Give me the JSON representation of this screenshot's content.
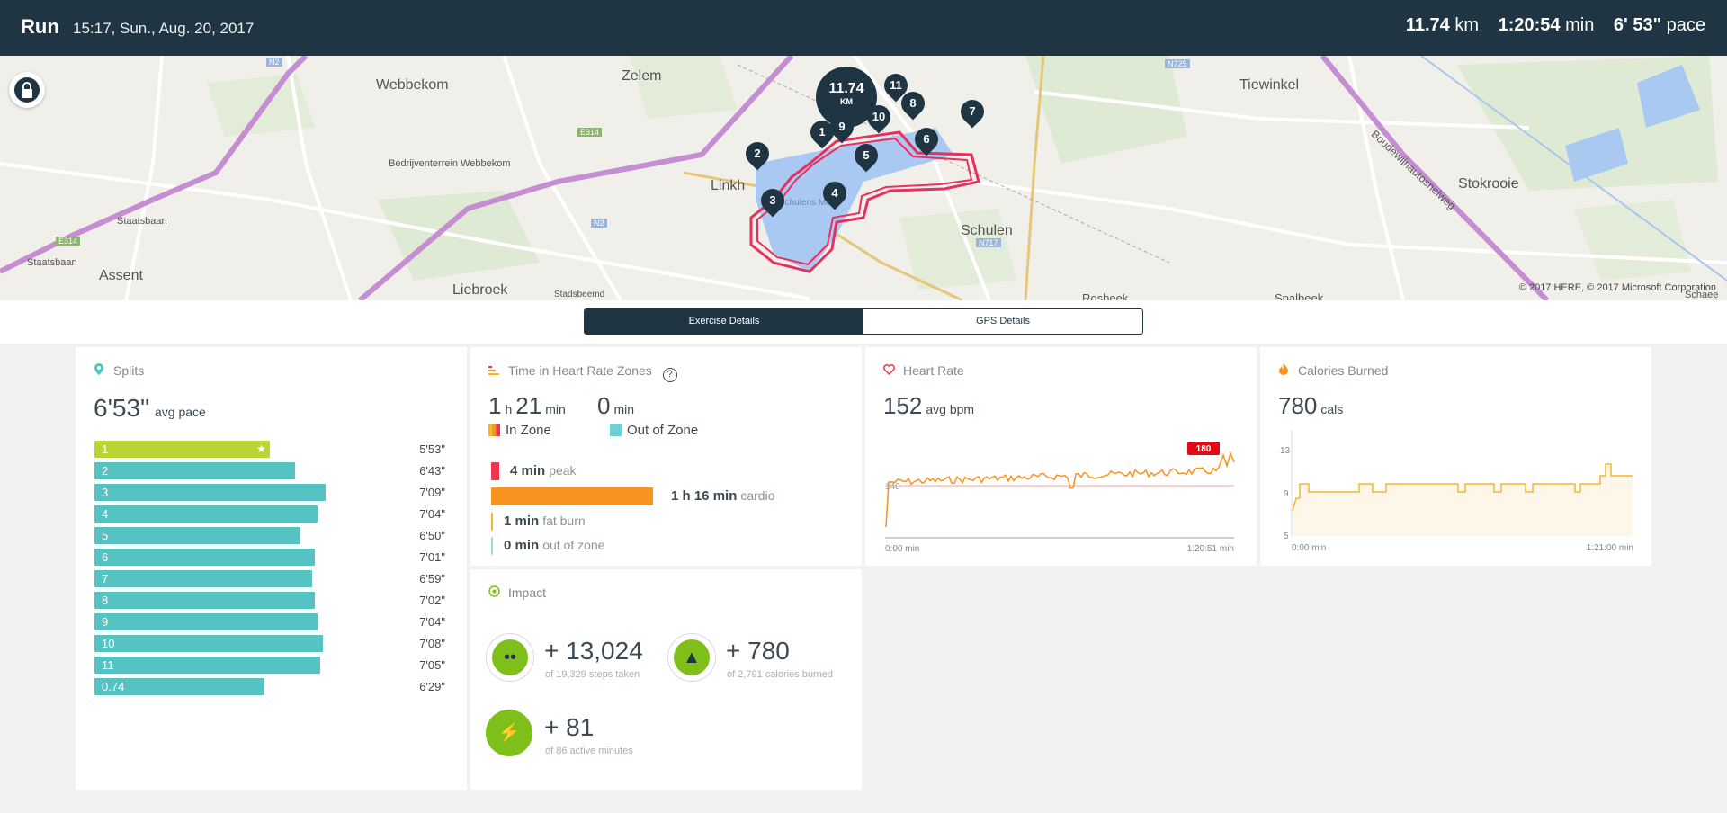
{
  "header": {
    "title": "Run",
    "datetime": "15:17, Sun., Aug. 20, 2017",
    "distance": "11.74",
    "distance_unit": "km",
    "duration": "1:20:54",
    "duration_unit": "min",
    "pace": "6' 53\"",
    "pace_unit": "pace"
  },
  "map": {
    "places": [
      "Webbekom",
      "Zelem",
      "Tiewinkel",
      "Bedrijventerrein Webbekom",
      "Linkh",
      "Stokrooie",
      "Schulen",
      "Assent",
      "Liebroek",
      "Staatsbaan",
      "Staatsbaan",
      "Boudewijnautosnelweg",
      "Schulens Meer",
      "Stadsbeemd",
      "Rosbeek",
      "Spalbeek",
      "Schaee"
    ],
    "road_badges": [
      "N2",
      "E314",
      "N725",
      "N2",
      "E314",
      "N717"
    ],
    "credit": "© 2017 HERE, © 2017 Microsoft Corporation",
    "total_marker_value": "11.74",
    "total_marker_unit": "KM",
    "markers": [
      "1",
      "2",
      "3",
      "4",
      "5",
      "6",
      "7",
      "8",
      "9",
      "10",
      "11"
    ],
    "lock_icon": "lock-icon"
  },
  "tabs": {
    "exercise": "Exercise Details",
    "gps": "GPS Details",
    "active": "exercise"
  },
  "splits": {
    "title": "Splits",
    "icon": "location-pin-icon",
    "avg_pace": "6'53\"",
    "avg_pace_label": "avg pace",
    "rows": [
      {
        "label": "1",
        "time": "5'53\"",
        "fraction": 0.63,
        "best": true
      },
      {
        "label": "2",
        "time": "6'43\"",
        "fraction": 0.72,
        "best": false
      },
      {
        "label": "3",
        "time": "7'09\"",
        "fraction": 0.83,
        "best": false
      },
      {
        "label": "4",
        "time": "7'04\"",
        "fraction": 0.8,
        "best": false
      },
      {
        "label": "5",
        "time": "6'50\"",
        "fraction": 0.74,
        "best": false
      },
      {
        "label": "6",
        "time": "7'01\"",
        "fraction": 0.79,
        "best": false
      },
      {
        "label": "7",
        "time": "6'59\"",
        "fraction": 0.78,
        "best": false
      },
      {
        "label": "8",
        "time": "7'02\"",
        "fraction": 0.79,
        "best": false
      },
      {
        "label": "9",
        "time": "7'04\"",
        "fraction": 0.8,
        "best": false
      },
      {
        "label": "10",
        "time": "7'08\"",
        "fraction": 0.82,
        "best": false
      },
      {
        "label": "11",
        "time": "7'05\"",
        "fraction": 0.81,
        "best": false
      },
      {
        "label": "0.74",
        "time": "6'29\"",
        "fraction": 0.61,
        "best": false
      }
    ]
  },
  "zones": {
    "title": "Time in Heart Rate Zones",
    "help_icon": "question-circle-icon",
    "in_zone_h": "1",
    "in_zone_h_unit": "h",
    "in_zone_min": "21",
    "in_zone_min_unit": "min",
    "out_zone_min": "0",
    "out_zone_unit": "min",
    "in_zone_label": "In Zone",
    "out_zone_label": "Out of Zone",
    "rows": [
      {
        "value": "4 min",
        "label": "peak",
        "color": "#f0344b",
        "minutes": 4
      },
      {
        "value": "1 h  16 min",
        "label": "cardio",
        "color": "#f7931e",
        "minutes": 76
      },
      {
        "value": "1 min",
        "label": "fat burn",
        "color": "#f7b52c",
        "minutes": 1
      },
      {
        "value": "0 min",
        "label": "out of zone",
        "color": "#9ad8e4",
        "minutes": 0
      }
    ]
  },
  "heart_rate": {
    "title": "Heart Rate",
    "icon": "heart-icon",
    "avg": "152",
    "avg_label": "avg bpm",
    "x_start": "0:00 min",
    "x_end": "1:20:51 min",
    "threshold_label": "140",
    "peak_label": "180",
    "line_color": "#f7931e"
  },
  "calories": {
    "title": "Calories Burned",
    "icon": "flame-icon",
    "value": "780",
    "unit": "cals",
    "y_ticks": [
      "13",
      "9",
      "5"
    ],
    "x_start": "0:00 min",
    "x_end": "1:21:00 min",
    "line_color": "#f7b52c"
  },
  "impact": {
    "title": "Impact",
    "icon": "target-icon",
    "steps_value": "+ 13,024",
    "steps_sub": "of 19,329 steps taken",
    "cal_value": "+ 780",
    "cal_sub": "of 2,791 calories burned",
    "active_value": "+ 81",
    "active_sub": "of 86 active minutes"
  }
}
